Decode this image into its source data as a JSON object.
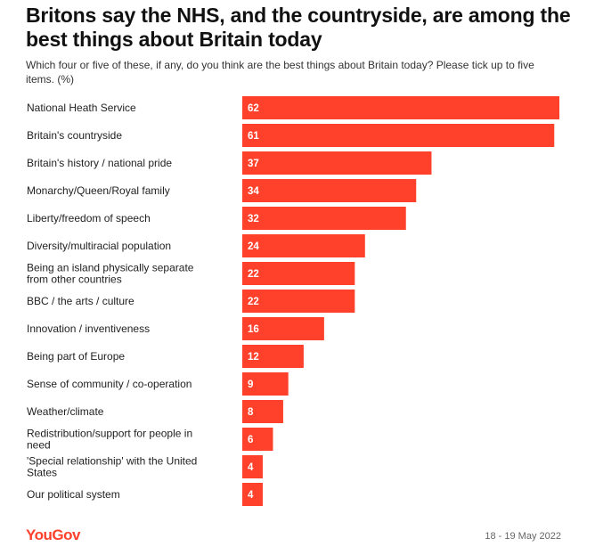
{
  "header": {
    "title": "Britons say the NHS, and the countryside, are among the best things about Britain today",
    "subtitle": "Which four or five of these, if any, do you think are the best things about Britain today? Please tick up to five items. (%)"
  },
  "footer": {
    "brand": "YouGov",
    "date": "18 - 19 May 2022"
  },
  "colors": {
    "bar": "#ff412c",
    "brand": "#ff412c"
  },
  "chart_data": {
    "type": "bar",
    "orientation": "horizontal",
    "title": "Britons say the NHS, and the countryside, are among the best things about Britain today",
    "xlabel": "",
    "ylabel": "",
    "unit": "%",
    "xlim": [
      0,
      62
    ],
    "categories": [
      "National Heath Service",
      "Britain's countryside",
      "Britain's history / national pride",
      "Monarchy/Queen/Royal family",
      "Liberty/freedom of speech",
      "Diversity/multiracial population",
      "Being an island physically separate from other countries",
      "BBC / the arts / culture",
      "Innovation / inventiveness",
      "Being part of Europe",
      "Sense of community / co-operation",
      "Weather/climate",
      "Redistribution/support for people in need",
      "'Special relationship' with the United States",
      "Our political system"
    ],
    "values": [
      62,
      61,
      37,
      34,
      32,
      24,
      22,
      22,
      16,
      12,
      9,
      8,
      6,
      4,
      4
    ]
  }
}
